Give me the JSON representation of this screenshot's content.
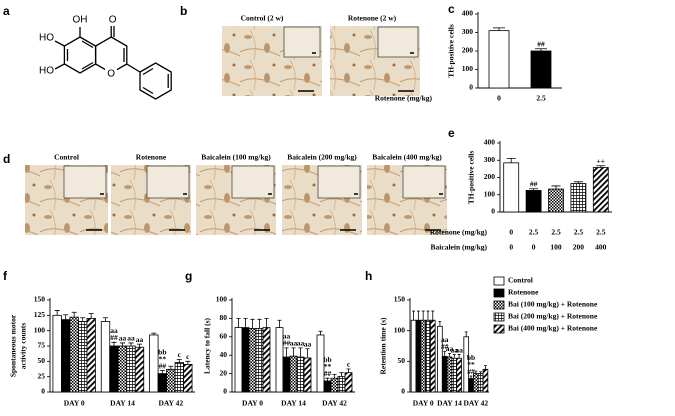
{
  "panel_letters": [
    "a",
    "b",
    "c",
    "d",
    "e",
    "f",
    "g",
    "h"
  ],
  "structure_labels": [
    "OH",
    "O",
    "HO",
    "HO",
    "O"
  ],
  "micrograph_labels": {
    "b": [
      "Control (2 w)",
      "Rotenone (2 w)"
    ],
    "d": [
      "Control",
      "Rotenone",
      "Baicalein (100 mg/kg)",
      "Baicalein (200 mg/kg)",
      "Baicalein (400 mg/kg)"
    ]
  },
  "chart_data": [
    {
      "type": "bar",
      "ylabel": "TH-positive cells",
      "ylim": [
        0,
        400
      ],
      "yticks": [
        0,
        100,
        200,
        300,
        400
      ],
      "category_rows": [
        {
          "label": "Rotenone (mg/kg)",
          "values": [
            "0",
            "2.5"
          ]
        }
      ],
      "values": [
        310,
        200
      ],
      "errors": [
        15,
        12
      ],
      "colors": [
        "#ffffff",
        "#000000"
      ],
      "patterns": [
        null,
        null
      ],
      "labels": [
        null,
        [
          "##"
        ]
      ]
    },
    {
      "type": "bar",
      "ylabel": "TH-positive cells",
      "ylim": [
        0,
        400
      ],
      "yticks": [
        0,
        100,
        200,
        300,
        400
      ],
      "category_rows": [
        {
          "label": "Rotenone (mg/kg)",
          "values": [
            "0",
            "2.5",
            "2.5",
            "2.5",
            "2.5"
          ]
        },
        {
          "label": "Baicalein (mg/kg)",
          "values": [
            "0",
            "0",
            "100",
            "200",
            "400"
          ]
        }
      ],
      "values": [
        285,
        125,
        133,
        165,
        258
      ],
      "errors": [
        25,
        10,
        18,
        10,
        10
      ],
      "colors": [
        "#ffffff",
        "#000000",
        "#ffffff",
        "#ffffff",
        "#ffffff"
      ],
      "patterns": [
        null,
        null,
        "checker",
        "grid",
        "diagonal"
      ],
      "labels": [
        null,
        [
          "##"
        ],
        null,
        null,
        [
          "++"
        ]
      ]
    },
    {
      "type": "bar",
      "ylabel": [
        "Spontaneous motor",
        "activity counts"
      ],
      "ylim": [
        0,
        150
      ],
      "yticks": [
        0,
        25,
        50,
        75,
        100,
        125,
        150
      ],
      "categories": [
        "DAY 0",
        "DAY 14",
        "DAY 42"
      ],
      "series": [
        {
          "color": "#ffffff",
          "pattern": null,
          "values": [
            125,
            115,
            93
          ],
          "errors": [
            8,
            6,
            3
          ],
          "labels": [
            null,
            null,
            null
          ]
        },
        {
          "color": "#000000",
          "pattern": null,
          "values": [
            118,
            75,
            30
          ],
          "errors": [
            8,
            6,
            5
          ],
          "labels": [
            null,
            [
              "aa",
              "##"
            ],
            [
              "bb",
              "**",
              "##"
            ]
          ]
        },
        {
          "color": "#ffffff",
          "pattern": "checker",
          "values": [
            122,
            75,
            37
          ],
          "errors": [
            8,
            5,
            5
          ],
          "labels": [
            null,
            [
              "aa"
            ],
            null
          ]
        },
        {
          "color": "#ffffff",
          "pattern": "grid",
          "values": [
            115,
            75,
            48
          ],
          "errors": [
            6,
            5,
            5
          ],
          "labels": [
            null,
            [
              "aa"
            ],
            [
              "c"
            ]
          ]
        },
        {
          "color": "#ffffff",
          "pattern": "diagonal",
          "values": [
            120,
            73,
            45
          ],
          "errors": [
            8,
            5,
            5
          ],
          "labels": [
            null,
            [
              "aa"
            ],
            [
              "c"
            ]
          ]
        }
      ]
    },
    {
      "type": "bar",
      "ylabel": "Latency to fall (s)",
      "ylim": [
        0,
        100
      ],
      "yticks": [
        0,
        20,
        40,
        60,
        80,
        100
      ],
      "categories": [
        "DAY 0",
        "DAY 14",
        "DAY 42"
      ],
      "series": [
        {
          "color": "#ffffff",
          "pattern": null,
          "values": [
            70,
            70,
            62
          ],
          "errors": [
            10,
            8,
            4
          ],
          "labels": [
            null,
            null,
            null
          ]
        },
        {
          "color": "#000000",
          "pattern": null,
          "values": [
            70,
            38,
            12
          ],
          "errors": [
            10,
            10,
            3
          ],
          "labels": [
            null,
            [
              "aa",
              "##"
            ],
            [
              "bb",
              "**",
              "##"
            ]
          ]
        },
        {
          "color": "#ffffff",
          "pattern": "checker",
          "values": [
            69,
            39,
            15
          ],
          "errors": [
            10,
            9,
            4
          ],
          "labels": [
            null,
            [
              "aa"
            ],
            null
          ]
        },
        {
          "color": "#ffffff",
          "pattern": "grid",
          "values": [
            69,
            38,
            17
          ],
          "errors": [
            10,
            10,
            4
          ],
          "labels": [
            null,
            [
              "aa"
            ],
            null
          ]
        },
        {
          "color": "#ffffff",
          "pattern": "diagonal",
          "values": [
            70,
            37,
            21
          ],
          "errors": [
            10,
            10,
            4
          ],
          "labels": [
            null,
            [
              "aa"
            ],
            [
              "c"
            ]
          ]
        }
      ]
    },
    {
      "type": "bar",
      "ylabel": "Retention time (s)",
      "ylim": [
        0,
        150
      ],
      "yticks": [
        0,
        50,
        100,
        150
      ],
      "categories": [
        "DAY 0",
        "DAY 14",
        "DAY 42"
      ],
      "legend": "right",
      "series": [
        {
          "name": "Control",
          "color": "#ffffff",
          "pattern": null,
          "values": [
            117,
            107,
            90
          ],
          "errors": [
            15,
            8,
            8
          ],
          "labels": [
            null,
            null,
            null
          ]
        },
        {
          "name": "Rotenone",
          "color": "#000000",
          "pattern": null,
          "values": [
            117,
            58,
            22
          ],
          "errors": [
            15,
            8,
            4
          ],
          "labels": [
            null,
            [
              "aa",
              "##"
            ],
            [
              "bb",
              "**",
              "##"
            ]
          ]
        },
        {
          "name": "Bai (100 mg/kg) + Rotenone",
          "color": "#ffffff",
          "pattern": "checker",
          "values": [
            117,
            57,
            30
          ],
          "errors": [
            15,
            6,
            4
          ],
          "labels": [
            null,
            [
              "aa"
            ],
            null
          ]
        },
        {
          "name": "Bai (200 mg/kg) + Rotenone",
          "color": "#ffffff",
          "pattern": "grid",
          "values": [
            117,
            55,
            30
          ],
          "errors": [
            15,
            6,
            3
          ],
          "labels": [
            null,
            [
              "aa"
            ],
            null
          ]
        },
        {
          "name": "Bai (400 mg/kg) + Rotenone",
          "color": "#ffffff",
          "pattern": "diagonal",
          "values": [
            117,
            55,
            37
          ],
          "errors": [
            15,
            6,
            6
          ],
          "labels": [
            null,
            [
              "aa"
            ],
            null
          ]
        }
      ]
    }
  ]
}
